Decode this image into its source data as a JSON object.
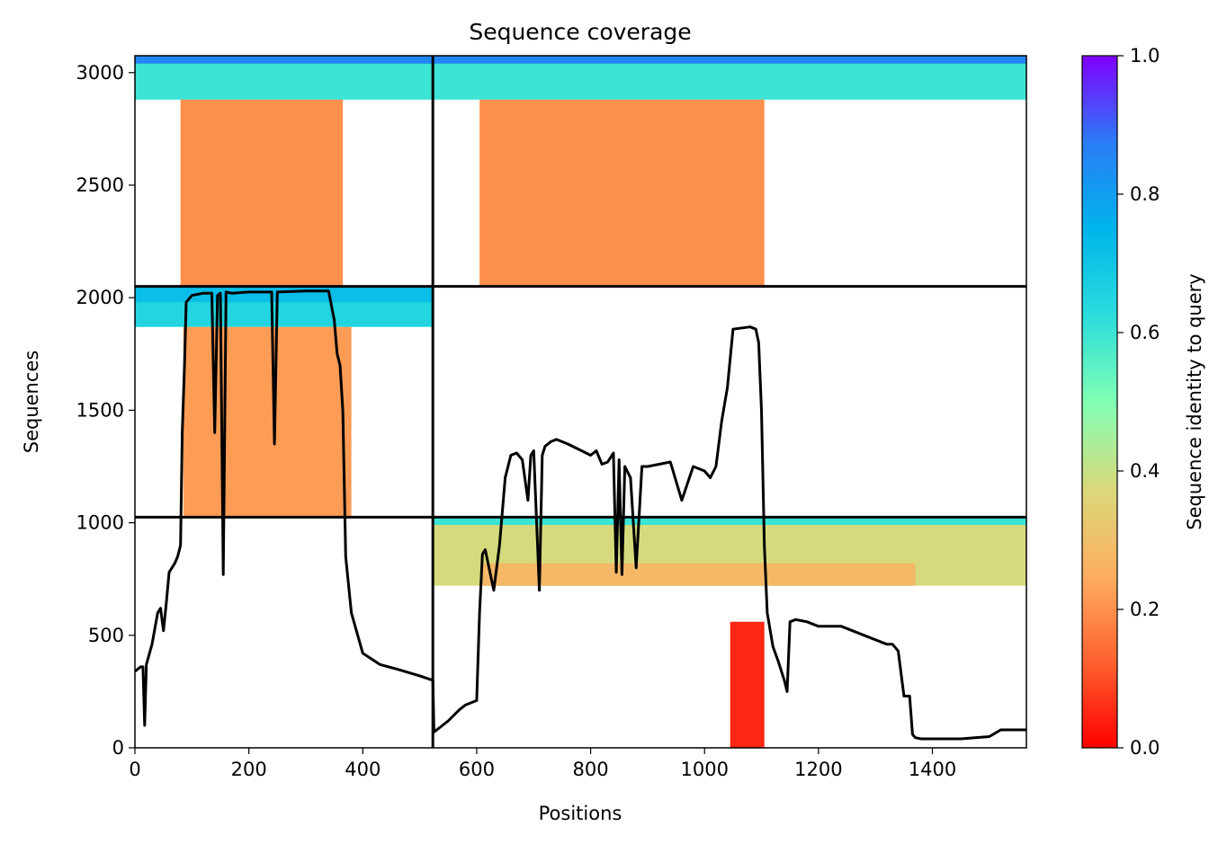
{
  "chart_data": {
    "type": "heatmap",
    "title": "Sequence coverage",
    "xlabel": "Positions",
    "ylabel": "Sequences",
    "xlim": [
      0,
      1565
    ],
    "ylim": [
      0,
      3075
    ],
    "xticks": [
      0,
      200,
      400,
      600,
      800,
      1000,
      1200,
      1400
    ],
    "yticks": [
      0,
      500,
      1000,
      1500,
      2000,
      2500,
      3000
    ],
    "colorbar": {
      "label": "Sequence identity to query",
      "range": [
        0,
        1
      ],
      "ticks": [
        0.0,
        0.2,
        0.4,
        0.6,
        0.8,
        1.0
      ],
      "colormap": "rainbow_r"
    },
    "grid_lines": {
      "vertical_x": [
        523
      ],
      "horizontal_y": [
        1025,
        2050
      ]
    },
    "coverage_blocks": [
      {
        "x": [
          0,
          523
        ],
        "y": [
          2880,
          3075
        ],
        "identity": 0.6
      },
      {
        "x": [
          0,
          523
        ],
        "y": [
          3040,
          3075
        ],
        "identity": 0.85
      },
      {
        "x": [
          80,
          365
        ],
        "y": [
          2050,
          2880
        ],
        "identity": 0.2
      },
      {
        "x": [
          523,
          1565
        ],
        "y": [
          2880,
          3075
        ],
        "identity": 0.6
      },
      {
        "x": [
          523,
          1565
        ],
        "y": [
          3040,
          3075
        ],
        "identity": 0.85
      },
      {
        "x": [
          605,
          1105
        ],
        "y": [
          2050,
          2880
        ],
        "identity": 0.2
      },
      {
        "x": [
          0,
          523
        ],
        "y": [
          1870,
          2050
        ],
        "identity": 0.65
      },
      {
        "x": [
          0,
          523
        ],
        "y": [
          1980,
          2050
        ],
        "identity": 0.72
      },
      {
        "x": [
          85,
          380
        ],
        "y": [
          1025,
          1870
        ],
        "identity": 0.22
      },
      {
        "x": [
          523,
          1565
        ],
        "y": [
          720,
          1025
        ],
        "identity": 0.38
      },
      {
        "x": [
          523,
          1565
        ],
        "y": [
          990,
          1025
        ],
        "identity": 0.6
      },
      {
        "x": [
          610,
          1370
        ],
        "y": [
          720,
          820
        ],
        "identity": 0.28
      },
      {
        "x": [
          1045,
          1105
        ],
        "y": [
          0,
          560
        ],
        "identity": 0.05
      }
    ],
    "series": [
      {
        "x": [
          0,
          10,
          14,
          17,
          20,
          30,
          40,
          45,
          50,
          55,
          60,
          70,
          75,
          80,
          83,
          87,
          90,
          100,
          120,
          135,
          140,
          145,
          150,
          155,
          160,
          170,
          200,
          240,
          245,
          250,
          300,
          340,
          350,
          355,
          360,
          365,
          370,
          380,
          400,
          430,
          460,
          500,
          523,
          525,
          530,
          550,
          570,
          580,
          590,
          600,
          605,
          610,
          615,
          630,
          640,
          650,
          660,
          670,
          680,
          690,
          695,
          700,
          710,
          715,
          720,
          730,
          740,
          760,
          800,
          810,
          820,
          830,
          840,
          845,
          850,
          855,
          860,
          870,
          880,
          890,
          900,
          920,
          940,
          960,
          980,
          1000,
          1010,
          1020,
          1030,
          1040,
          1050,
          1080,
          1090,
          1095,
          1100,
          1105,
          1110,
          1120,
          1130,
          1140,
          1145,
          1150,
          1160,
          1180,
          1200,
          1240,
          1280,
          1300,
          1320,
          1330,
          1340,
          1350,
          1360,
          1365,
          1370,
          1380,
          1400,
          1450,
          1500,
          1520,
          1565
        ],
        "values": [
          340,
          360,
          360,
          100,
          370,
          460,
          600,
          620,
          520,
          640,
          780,
          820,
          850,
          900,
          1400,
          1700,
          1980,
          2010,
          2020,
          2020,
          1400,
          2010,
          2020,
          770,
          2025,
          2020,
          2025,
          2025,
          1350,
          2025,
          2030,
          2030,
          1900,
          1750,
          1700,
          1500,
          850,
          600,
          420,
          370,
          350,
          320,
          300,
          70,
          80,
          120,
          170,
          190,
          200,
          210,
          600,
          860,
          880,
          700,
          900,
          1200,
          1300,
          1310,
          1280,
          1100,
          1300,
          1320,
          700,
          1300,
          1340,
          1360,
          1370,
          1350,
          1300,
          1320,
          1260,
          1270,
          1310,
          780,
          1280,
          770,
          1250,
          1200,
          800,
          1250,
          1250,
          1260,
          1270,
          1100,
          1250,
          1230,
          1200,
          1250,
          1450,
          1600,
          1860,
          1870,
          1860,
          1800,
          1500,
          900,
          600,
          450,
          380,
          300,
          250,
          560,
          570,
          560,
          540,
          540,
          500,
          480,
          460,
          460,
          430,
          230,
          230,
          60,
          45,
          40,
          40,
          40,
          50,
          80,
          80
        ]
      }
    ]
  }
}
